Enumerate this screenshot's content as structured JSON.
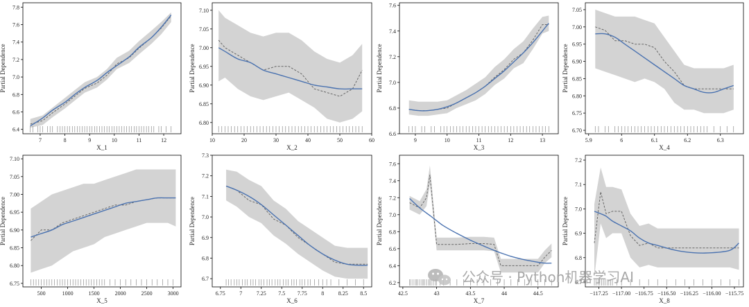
{
  "figure": {
    "watermark": "公众号 · Python机器学习AI",
    "colors": {
      "band": "#d3d3d3",
      "pdp_line": "#666666",
      "smooth_line": "#4a72b0",
      "rug": "#444444",
      "axes": "#000000"
    }
  },
  "chart_data": [
    {
      "type": "line",
      "title": "",
      "xlabel": "X_1",
      "ylabel": "Partial Dependence",
      "xlim": [
        6.3,
        12.7
      ],
      "ylim": [
        6.35,
        7.85
      ],
      "xticks": [
        7,
        8,
        9,
        10,
        11,
        12
      ],
      "yticks": [
        6.4,
        6.6,
        6.8,
        7.0,
        7.2,
        7.4,
        7.6,
        7.8
      ],
      "ytick_labels": [
        "6.4",
        "6.6",
        "6.8",
        "7.0",
        "7.2",
        "7.4",
        "7.6",
        "7.8"
      ],
      "x": [
        6.6,
        7.1,
        7.5,
        8.0,
        8.4,
        8.8,
        9.3,
        9.7,
        10.1,
        10.6,
        11.0,
        11.5,
        11.9,
        12.3
      ],
      "pdp": [
        6.46,
        6.5,
        6.59,
        6.69,
        6.78,
        6.87,
        6.93,
        7.02,
        7.15,
        7.22,
        7.33,
        7.45,
        7.56,
        7.7
      ],
      "smooth": [
        6.44,
        6.53,
        6.62,
        6.71,
        6.8,
        6.88,
        6.96,
        7.05,
        7.13,
        7.23,
        7.34,
        7.45,
        7.57,
        7.71
      ],
      "lower": [
        6.42,
        6.45,
        6.54,
        6.64,
        6.73,
        6.82,
        6.88,
        6.97,
        7.09,
        7.16,
        7.26,
        7.38,
        7.49,
        7.63
      ],
      "upper": [
        6.52,
        6.56,
        6.65,
        6.76,
        6.85,
        6.94,
        7.0,
        7.09,
        7.22,
        7.3,
        7.41,
        7.53,
        7.63,
        7.74
      ],
      "rug": [
        6.6,
        6.7,
        6.9,
        7.0,
        7.1,
        7.3,
        7.4,
        7.5,
        7.7,
        7.8,
        7.9,
        8.0,
        8.1,
        8.2,
        8.3,
        8.4,
        8.5,
        8.6,
        8.7,
        8.8,
        8.9,
        9.0,
        9.1,
        9.2,
        9.3,
        9.4,
        9.5,
        9.6,
        9.7,
        9.8,
        9.9,
        10.0,
        10.1,
        10.2,
        10.3,
        10.4,
        10.5,
        10.6,
        10.7,
        10.8,
        10.9,
        11.0,
        11.1,
        11.2,
        11.3,
        11.4,
        11.5,
        11.6,
        11.8,
        11.9,
        12.1,
        12.3
      ]
    },
    {
      "type": "line",
      "title": "",
      "xlabel": "X_2",
      "ylabel": "Partial Dependence",
      "xlim": [
        10,
        60
      ],
      "ylim": [
        6.77,
        7.12
      ],
      "xticks": [
        10,
        20,
        30,
        40,
        50,
        60
      ],
      "yticks": [
        6.8,
        6.85,
        6.9,
        6.95,
        7.0,
        7.05,
        7.1
      ],
      "ytick_labels": [
        "6.80",
        "6.85",
        "6.90",
        "6.95",
        "7.00",
        "7.05",
        "7.10"
      ],
      "x": [
        12,
        14,
        18,
        22,
        26,
        30,
        34,
        38,
        42,
        46,
        50,
        54,
        57
      ],
      "pdp": [
        7.02,
        7.0,
        6.98,
        6.96,
        6.94,
        6.95,
        6.95,
        6.93,
        6.89,
        6.88,
        6.87,
        6.89,
        6.94
      ],
      "smooth": [
        7.0,
        6.99,
        6.97,
        6.96,
        6.94,
        6.93,
        6.92,
        6.91,
        6.9,
        6.895,
        6.89,
        6.89,
        6.89
      ],
      "lower": [
        6.91,
        6.92,
        6.89,
        6.87,
        6.86,
        6.87,
        6.88,
        6.86,
        6.84,
        6.81,
        6.8,
        6.81,
        6.83
      ],
      "upper": [
        7.1,
        7.08,
        7.06,
        7.04,
        7.03,
        7.04,
        7.04,
        7.02,
        6.99,
        6.97,
        6.96,
        6.98,
        7.01
      ],
      "rug": [
        12,
        13,
        14,
        15,
        16,
        17,
        18,
        19,
        20,
        21,
        22,
        23,
        24,
        25,
        26,
        27,
        28,
        29,
        30,
        31,
        32,
        33,
        34,
        35,
        36,
        37,
        38,
        39,
        40,
        41,
        42,
        43,
        44,
        45,
        46,
        47,
        48,
        49,
        50,
        51,
        52,
        53,
        54,
        55,
        56,
        57
      ]
    },
    {
      "type": "line",
      "title": "",
      "xlabel": "X_3",
      "ylabel": "Partial Dependence",
      "xlim": [
        8.5,
        13.5
      ],
      "ylim": [
        6.6,
        7.62
      ],
      "xticks": [
        9,
        10,
        11,
        12,
        13
      ],
      "yticks": [
        6.6,
        6.8,
        7.0,
        7.2,
        7.4,
        7.6
      ],
      "ytick_labels": [
        "6.6",
        "6.8",
        "7.0",
        "7.2",
        "7.4",
        "7.6"
      ],
      "x": [
        8.8,
        9.1,
        9.4,
        9.7,
        10.0,
        10.3,
        10.6,
        10.9,
        11.2,
        11.5,
        11.8,
        12.1,
        12.4,
        12.7,
        13.0,
        13.2
      ],
      "pdp": [
        6.79,
        6.78,
        6.78,
        6.79,
        6.8,
        6.84,
        6.88,
        6.92,
        6.97,
        7.04,
        7.1,
        7.18,
        7.23,
        7.33,
        7.45,
        7.45
      ],
      "smooth": [
        6.79,
        6.78,
        6.78,
        6.79,
        6.81,
        6.84,
        6.88,
        6.92,
        6.97,
        7.03,
        7.09,
        7.16,
        7.23,
        7.31,
        7.4,
        7.46
      ],
      "lower": [
        6.75,
        6.74,
        6.74,
        6.75,
        6.76,
        6.8,
        6.83,
        6.86,
        6.91,
        6.98,
        7.03,
        7.11,
        7.15,
        7.26,
        7.38,
        7.4
      ],
      "upper": [
        6.86,
        6.85,
        6.85,
        6.85,
        6.86,
        6.9,
        6.94,
        6.99,
        7.04,
        7.12,
        7.18,
        7.26,
        7.32,
        7.42,
        7.51,
        7.52
      ],
      "rug": [
        8.8,
        8.9,
        9.0,
        9.2,
        9.3,
        9.5,
        9.6,
        9.8,
        9.9,
        10.0,
        10.1,
        10.2,
        10.3,
        10.4,
        10.5,
        10.6,
        10.7,
        10.8,
        10.9,
        11.0,
        11.1,
        11.2,
        11.3,
        11.4,
        11.5,
        11.6,
        11.7,
        11.8,
        11.9,
        12.0,
        12.1,
        12.2,
        12.3,
        12.4,
        12.5,
        12.6,
        12.7,
        12.8,
        12.9,
        13.0,
        13.1,
        13.2
      ]
    },
    {
      "type": "line",
      "title": "",
      "xlabel": "X_4",
      "ylabel": "Partial Dependence",
      "xlim": [
        5.89,
        6.37
      ],
      "ylim": [
        6.69,
        7.07
      ],
      "xticks": [
        5.9,
        6.0,
        6.1,
        6.2,
        6.3
      ],
      "yticks": [
        6.7,
        6.75,
        6.8,
        6.85,
        6.9,
        6.95,
        7.0,
        7.05
      ],
      "ytick_labels": [
        "6.70",
        "6.75",
        "6.80",
        "6.85",
        "6.90",
        "6.95",
        "7.00",
        "7.05"
      ],
      "x": [
        5.92,
        5.95,
        5.98,
        6.01,
        6.04,
        6.07,
        6.1,
        6.13,
        6.16,
        6.19,
        6.22,
        6.25,
        6.28,
        6.31,
        6.34
      ],
      "pdp": [
        7.0,
        6.99,
        6.96,
        6.96,
        6.95,
        6.95,
        6.94,
        6.9,
        6.87,
        6.83,
        6.82,
        6.82,
        6.82,
        6.82,
        6.82
      ],
      "smooth": [
        6.98,
        6.98,
        6.97,
        6.95,
        6.93,
        6.91,
        6.89,
        6.87,
        6.85,
        6.83,
        6.82,
        6.81,
        6.81,
        6.82,
        6.83
      ],
      "lower": [
        6.88,
        6.87,
        6.86,
        6.85,
        6.84,
        6.85,
        6.84,
        6.82,
        6.78,
        6.76,
        6.76,
        6.75,
        6.75,
        6.75,
        6.76
      ],
      "upper": [
        7.05,
        7.04,
        7.03,
        7.03,
        7.03,
        7.02,
        7.01,
        6.97,
        6.93,
        6.89,
        6.88,
        6.88,
        6.88,
        6.88,
        6.89
      ],
      "rug": [
        5.92,
        5.93,
        5.95,
        5.96,
        5.98,
        5.99,
        6.0,
        6.01,
        6.02,
        6.03,
        6.04,
        6.05,
        6.06,
        6.07,
        6.08,
        6.09,
        6.1,
        6.11,
        6.12,
        6.13,
        6.14,
        6.15,
        6.16,
        6.17,
        6.18,
        6.19,
        6.2,
        6.21,
        6.22,
        6.23,
        6.24,
        6.25,
        6.26,
        6.28,
        6.3,
        6.32,
        6.34
      ]
    },
    {
      "type": "line",
      "title": "",
      "xlabel": "X_5",
      "ylabel": "Partial Dependence",
      "xlim": [
        150,
        3150
      ],
      "ylim": [
        6.74,
        7.11
      ],
      "xticks": [
        500,
        1000,
        1500,
        2000,
        2500,
        3000
      ],
      "yticks": [
        6.75,
        6.8,
        6.85,
        6.9,
        6.95,
        7.0,
        7.05,
        7.1
      ],
      "ytick_labels": [
        "6.75",
        "6.80",
        "6.85",
        "6.90",
        "6.95",
        "7.00",
        "7.05",
        "7.10"
      ],
      "x": [
        300,
        500,
        700,
        900,
        1100,
        1300,
        1500,
        1700,
        1900,
        2100,
        2300,
        2500,
        2700,
        2900,
        3050
      ],
      "pdp": [
        6.87,
        6.9,
        6.9,
        6.92,
        6.93,
        6.94,
        6.95,
        6.96,
        6.97,
        6.97,
        6.98,
        6.985,
        6.99,
        6.99,
        6.99
      ],
      "smooth": [
        6.88,
        6.89,
        6.9,
        6.915,
        6.925,
        6.935,
        6.945,
        6.955,
        6.965,
        6.975,
        6.98,
        6.985,
        6.99,
        6.99,
        6.99
      ],
      "lower": [
        6.78,
        6.79,
        6.8,
        6.82,
        6.84,
        6.85,
        6.86,
        6.88,
        6.89,
        6.9,
        6.91,
        6.92,
        6.92,
        6.92,
        6.91
      ],
      "upper": [
        6.96,
        6.98,
        7.0,
        7.01,
        7.02,
        7.03,
        7.03,
        7.04,
        7.05,
        7.06,
        7.07,
        7.07,
        7.07,
        7.07,
        7.07
      ],
      "rug": [
        300,
        350,
        400,
        450,
        500,
        550,
        600,
        650,
        700,
        750,
        800,
        850,
        900,
        950,
        1000,
        1050,
        1100,
        1150,
        1200,
        1250,
        1300,
        1350,
        1400,
        1450,
        1500,
        1550,
        1600,
        1650,
        1700,
        1800,
        1900,
        2000,
        2100,
        2200,
        2300,
        2400,
        2500,
        2600,
        2700,
        2800,
        2900,
        3000
      ]
    },
    {
      "type": "line",
      "title": "",
      "xlabel": "X_6",
      "ylabel": "Partial Dependence",
      "xlim": [
        6.65,
        8.6
      ],
      "ylim": [
        6.66,
        7.3
      ],
      "xticks": [
        6.75,
        7.0,
        7.25,
        7.5,
        7.75,
        8.0,
        8.25,
        8.5
      ],
      "yticks": [
        6.7,
        6.8,
        6.9,
        7.0,
        7.1,
        7.2,
        7.3
      ],
      "ytick_labels": [
        "6.7",
        "6.8",
        "6.9",
        "7.0",
        "7.1",
        "7.2",
        "7.3"
      ],
      "x": [
        6.82,
        6.95,
        7.1,
        7.25,
        7.4,
        7.55,
        7.7,
        7.85,
        8.0,
        8.15,
        8.3,
        8.45,
        8.55
      ],
      "pdp": [
        7.15,
        7.13,
        7.08,
        7.06,
        6.99,
        6.96,
        6.9,
        6.86,
        6.82,
        6.78,
        6.77,
        6.77,
        6.77
      ],
      "smooth": [
        7.15,
        7.13,
        7.1,
        7.06,
        7.01,
        6.96,
        6.91,
        6.86,
        6.82,
        6.79,
        6.77,
        6.765,
        6.765
      ],
      "lower": [
        7.08,
        7.05,
        7.0,
        6.97,
        6.91,
        6.87,
        6.82,
        6.78,
        6.74,
        6.71,
        6.7,
        6.7,
        6.7
      ],
      "upper": [
        7.23,
        7.22,
        7.18,
        7.15,
        7.08,
        7.04,
        6.98,
        6.94,
        6.9,
        6.86,
        6.85,
        6.85,
        6.85
      ],
      "rug": [
        6.82,
        6.85,
        6.88,
        6.92,
        6.95,
        6.98,
        7.02,
        7.05,
        7.08,
        7.12,
        7.15,
        7.18,
        7.22,
        7.25,
        7.28,
        7.32,
        7.35,
        7.38,
        7.42,
        7.45,
        7.48,
        7.52,
        7.55,
        7.58,
        7.62,
        7.65,
        7.68,
        7.72,
        7.75,
        7.78,
        7.82,
        7.85,
        7.9,
        7.95,
        8.0,
        8.05,
        8.1,
        8.2,
        8.3,
        8.4,
        8.5
      ]
    },
    {
      "type": "line",
      "title": "",
      "xlabel": "X_7",
      "ylabel": "Partial Dependence",
      "xlim": [
        42.45,
        44.8
      ],
      "ylim": [
        6.15,
        7.7
      ],
      "xticks": [
        42.5,
        43.0,
        43.5,
        44.0,
        44.5
      ],
      "yticks": [
        6.2,
        6.4,
        6.6,
        6.8,
        7.0,
        7.2,
        7.4,
        7.6
      ],
      "ytick_labels": [
        "6.2",
        "6.4",
        "6.6",
        "6.8",
        "7.0",
        "7.2",
        "7.4",
        "7.6"
      ],
      "x": [
        42.6,
        42.75,
        42.85,
        42.9,
        43.0,
        43.1,
        43.3,
        43.5,
        43.7,
        43.85,
        43.95,
        44.1,
        44.3,
        44.5,
        44.6,
        44.7
      ],
      "pdp": [
        7.14,
        7.08,
        7.2,
        7.47,
        6.65,
        6.65,
        6.65,
        6.66,
        6.66,
        6.65,
        6.4,
        6.4,
        6.4,
        6.4,
        6.5,
        6.58
      ],
      "smooth": [
        7.19,
        7.08,
        7.02,
        6.99,
        6.93,
        6.87,
        6.78,
        6.7,
        6.63,
        6.58,
        6.55,
        6.51,
        6.47,
        6.44,
        6.43,
        6.43
      ],
      "lower": [
        7.06,
        7.0,
        7.1,
        7.36,
        6.58,
        6.58,
        6.58,
        6.58,
        6.58,
        6.57,
        6.32,
        6.32,
        6.32,
        6.32,
        6.43,
        6.5
      ],
      "upper": [
        7.22,
        7.16,
        7.3,
        7.58,
        6.73,
        6.73,
        6.73,
        6.74,
        6.74,
        6.73,
        6.48,
        6.48,
        6.48,
        6.48,
        6.58,
        6.66
      ],
      "rug": [
        42.6,
        42.62,
        42.65,
        42.68,
        42.7,
        42.72,
        42.75,
        42.78,
        42.8,
        42.82,
        42.85,
        42.88,
        42.9,
        42.92,
        42.95,
        42.98,
        43.0,
        43.05,
        43.1,
        43.2,
        43.3,
        43.4,
        43.5,
        43.6,
        43.7,
        43.8,
        43.9,
        44.0,
        44.1,
        44.2,
        44.3,
        44.4,
        44.5,
        44.6,
        44.7
      ]
    },
    {
      "type": "line",
      "title": "",
      "xlabel": "X_8",
      "ylabel": "Partial Dependence",
      "xlim": [
        -117.4,
        -115.65
      ],
      "ylim": [
        6.68,
        7.22
      ],
      "xticks": [
        -117.25,
        -117.0,
        -116.75,
        -116.5,
        -116.25,
        -116.0,
        -115.75
      ],
      "xtick_labels": [
        "−117.25",
        "−117.00",
        "−116.75",
        "−116.50",
        "−116.25",
        "−116.00",
        "−115.75"
      ],
      "yticks": [
        6.7,
        6.8,
        6.9,
        7.0,
        7.1,
        7.2
      ],
      "ytick_labels": [
        "6.7",
        "6.8",
        "6.9",
        "7.0",
        "7.1",
        "7.2"
      ],
      "x": [
        -117.3,
        -117.23,
        -117.17,
        -117.1,
        -117.0,
        -116.9,
        -116.8,
        -116.7,
        -116.6,
        -116.4,
        -116.2,
        -116.0,
        -115.8,
        -115.7
      ],
      "pdp": [
        6.86,
        7.07,
        6.98,
        6.99,
        6.99,
        6.89,
        6.85,
        6.86,
        6.84,
        6.84,
        6.84,
        6.84,
        6.84,
        6.84
      ],
      "smooth": [
        6.99,
        6.98,
        6.97,
        6.95,
        6.93,
        6.91,
        6.88,
        6.86,
        6.85,
        6.83,
        6.82,
        6.82,
        6.83,
        6.86
      ],
      "lower": [
        6.72,
        6.94,
        6.88,
        6.9,
        6.9,
        6.8,
        6.76,
        6.77,
        6.76,
        6.76,
        6.76,
        6.76,
        6.76,
        6.75
      ],
      "upper": [
        7.02,
        7.17,
        7.09,
        7.09,
        7.08,
        6.98,
        6.93,
        6.94,
        6.92,
        6.92,
        6.92,
        6.92,
        6.92,
        6.92
      ],
      "rug": [
        -117.3,
        -117.28,
        -117.26,
        -117.24,
        -117.22,
        -117.2,
        -117.18,
        -117.16,
        -117.14,
        -117.12,
        -117.1,
        -117.05,
        -117.0,
        -116.9,
        -116.8,
        -116.7,
        -116.6,
        -116.5,
        -116.4,
        -116.3,
        -116.2,
        -116.1,
        -116.0,
        -115.9,
        -115.8,
        -115.7
      ]
    }
  ]
}
